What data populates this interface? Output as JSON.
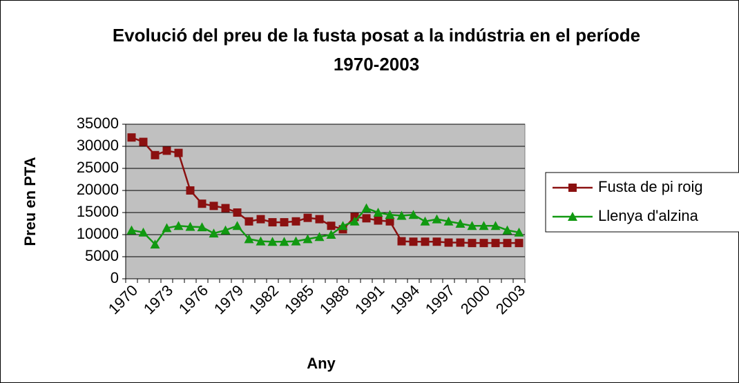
{
  "chart_data": {
    "type": "line",
    "title": "Evolució del preu de la fusta posat a la indústria en el període 1970-2003",
    "x_label": "Any",
    "y_label": "Preu en PTA",
    "categories": [
      "1970",
      null,
      null,
      "1973",
      null,
      null,
      "1976",
      null,
      null,
      "1979",
      null,
      null,
      "1982",
      null,
      null,
      "1985",
      null,
      null,
      "1988",
      null,
      null,
      "1991",
      null,
      null,
      "1994",
      null,
      null,
      "1997",
      null,
      null,
      "2000",
      null,
      null,
      "2003"
    ],
    "series": [
      {
        "name": "Fusta de pi roig",
        "color": "#8b1010",
        "marker": "square",
        "values": [
          32000,
          31000,
          28000,
          29000,
          28500,
          20000,
          17000,
          16500,
          16000,
          15000,
          13000,
          13500,
          12800,
          12800,
          13000,
          13800,
          13500,
          12000,
          11200,
          14000,
          13700,
          13200,
          13000,
          8500,
          8400,
          8400,
          8400,
          8200,
          8200,
          8100,
          8100,
          8100,
          8100,
          8100
        ]
      },
      {
        "name": "Llenya d'alzina",
        "color": "#119911",
        "marker": "triangle",
        "values": [
          11000,
          10500,
          7800,
          11500,
          12000,
          11800,
          11700,
          10300,
          11000,
          12000,
          9000,
          8500,
          8400,
          8400,
          8500,
          9000,
          9500,
          10000,
          12000,
          13000,
          16000,
          15000,
          14500,
          14300,
          14500,
          13000,
          13500,
          13000,
          12500,
          12000,
          12000,
          12000,
          11000,
          10500
        ]
      }
    ],
    "ylim": [
      0,
      35000
    ],
    "yticks": [
      0,
      5000,
      10000,
      15000,
      20000,
      25000,
      30000,
      35000
    ],
    "grid": true,
    "legend": "right"
  }
}
